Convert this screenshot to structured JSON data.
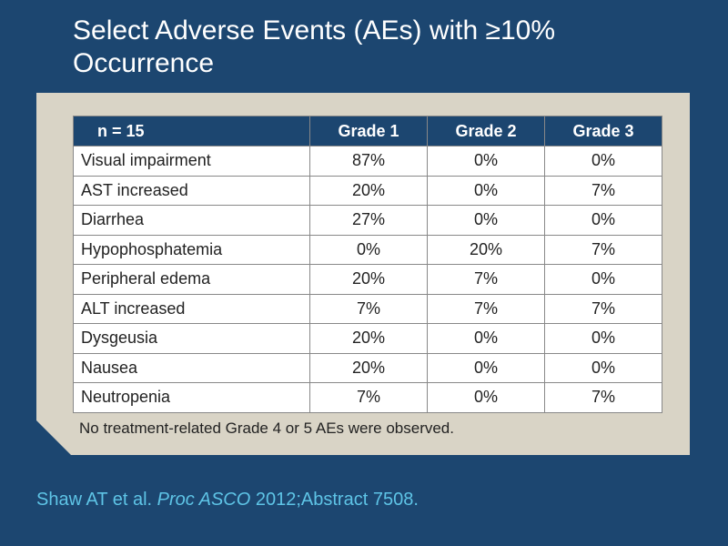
{
  "title": "Select Adverse Events (AEs) with ≥10% Occurrence",
  "table": {
    "headers": [
      "n = 15",
      "Grade 1",
      "Grade 2",
      "Grade 3"
    ],
    "rows": [
      {
        "event": "Visual impairment",
        "g1": "87%",
        "g2": "0%",
        "g3": "0%"
      },
      {
        "event": "AST increased",
        "g1": "20%",
        "g2": "0%",
        "g3": "7%"
      },
      {
        "event": "Diarrhea",
        "g1": "27%",
        "g2": "0%",
        "g3": "0%"
      },
      {
        "event": "Hypophosphatemia",
        "g1": "0%",
        "g2": "20%",
        "g3": "7%"
      },
      {
        "event": "Peripheral edema",
        "g1": "20%",
        "g2": "7%",
        "g3": "0%"
      },
      {
        "event": "ALT increased",
        "g1": "7%",
        "g2": "7%",
        "g3": "7%"
      },
      {
        "event": "Dysgeusia",
        "g1": "20%",
        "g2": "0%",
        "g3": "0%"
      },
      {
        "event": "Nausea",
        "g1": "20%",
        "g2": "0%",
        "g3": "0%"
      },
      {
        "event": "Neutropenia",
        "g1": "7%",
        "g2": "0%",
        "g3": "7%"
      }
    ]
  },
  "footnote": "No treatment-related Grade 4 or 5 AEs were observed.",
  "citation": {
    "authors": "Shaw AT et al.",
    "journal": "Proc ASCO",
    "details": "2012;Abstract 7508."
  },
  "colors": {
    "background": "#1c4670",
    "panel": "#d9d4c6",
    "header": "#1c4670",
    "citation": "#5ec4e6"
  }
}
